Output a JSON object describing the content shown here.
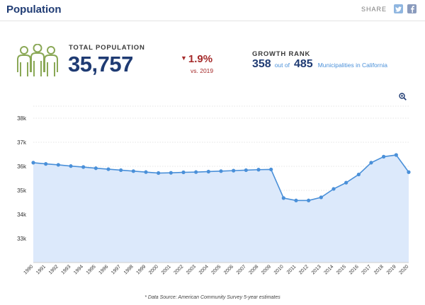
{
  "header": {
    "title": "Population",
    "share_label": "SHARE",
    "share_icons": [
      "twitter-icon",
      "facebook-icon"
    ]
  },
  "summary": {
    "icon": "people-group-icon",
    "total_label": "TOTAL POPULATION",
    "total_value": "35,757",
    "change_direction": "down",
    "change_value": "1.9%",
    "change_sub": "vs. 2019",
    "rank_label": "GROWTH RANK",
    "rank_value": "358",
    "rank_out_of": "out of",
    "rank_total": "485",
    "rank_scope": "Municipalities in California"
  },
  "colors": {
    "navy": "#1f3b73",
    "line": "#4a90d9",
    "area": "#dce9fb",
    "icon": "#8aa856",
    "down": "#a52a2a"
  },
  "chart_data": {
    "type": "area",
    "title": "",
    "xlabel": "",
    "ylabel": "",
    "x": [
      "1990",
      "1991",
      "1992",
      "1993",
      "1994",
      "1995",
      "1996",
      "1997",
      "1998",
      "1999",
      "2000",
      "2001",
      "2002",
      "2003",
      "2004",
      "2005",
      "2006",
      "2007",
      "2008",
      "2009",
      "2010",
      "2011",
      "2012",
      "2013",
      "2014",
      "2015",
      "2016",
      "2017",
      "2018",
      "2019",
      "2020"
    ],
    "values": [
      36150,
      36100,
      36060,
      36010,
      35970,
      35920,
      35880,
      35840,
      35800,
      35760,
      35720,
      35730,
      35750,
      35760,
      35780,
      35800,
      35820,
      35840,
      35860,
      35870,
      34680,
      34580,
      34580,
      34710,
      35060,
      35320,
      35660,
      36150,
      36400,
      36470,
      35757
    ],
    "yticks": [
      33000,
      34000,
      35000,
      36000,
      37000,
      38000
    ],
    "ytick_labels": [
      "33k",
      "34k",
      "35k",
      "36k",
      "37k",
      "38k"
    ],
    "ylim": [
      32000,
      38500
    ],
    "grid": true
  },
  "footer": {
    "source": "* Data Source: American Community Survey 5-year estimates"
  }
}
